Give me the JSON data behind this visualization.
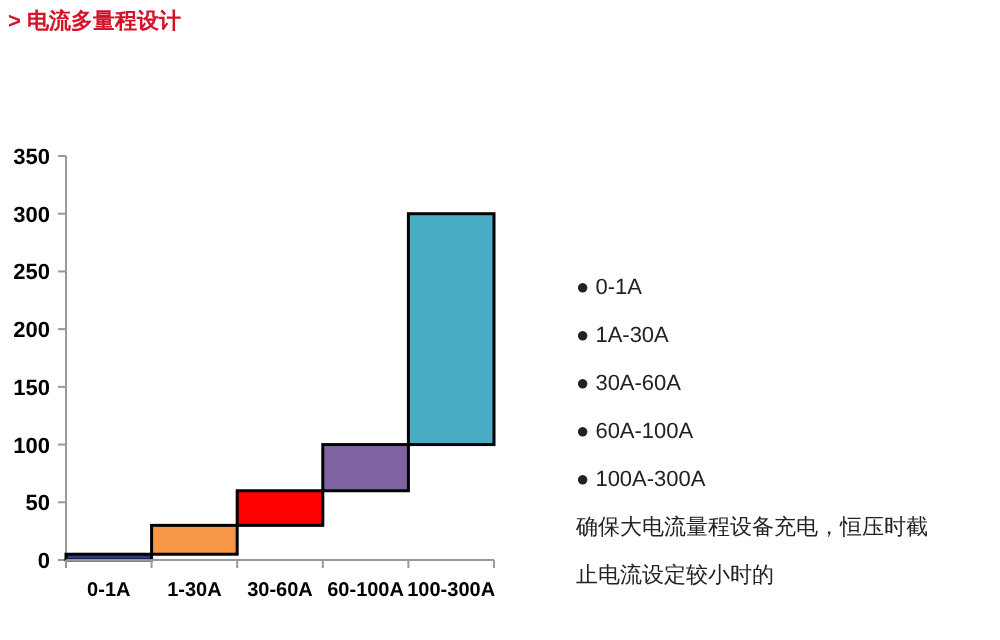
{
  "chart_data": {
    "type": "bar",
    "title": "> 电流多量程设计",
    "categories": [
      "0-1A",
      "1-30A",
      "30-60A",
      "60-100A",
      "100-300A"
    ],
    "base": [
      0,
      5,
      30,
      60,
      100
    ],
    "values": [
      5,
      25,
      30,
      40,
      200
    ],
    "colors": [
      "#2e3a87",
      "#f79646",
      "#ff0000",
      "#8064a2",
      "#4bacc6"
    ],
    "ylim": [
      0,
      350
    ],
    "yticks": [
      0,
      50,
      100,
      150,
      200,
      250,
      300,
      350
    ],
    "annotations": [
      "● 0-1A",
      "● 1A-30A",
      "● 30A-60A",
      "● 60A-100A",
      "● 100A-300A",
      "确保大电流量程设备充电，恒压时截",
      "止电流设定较小时的"
    ]
  }
}
